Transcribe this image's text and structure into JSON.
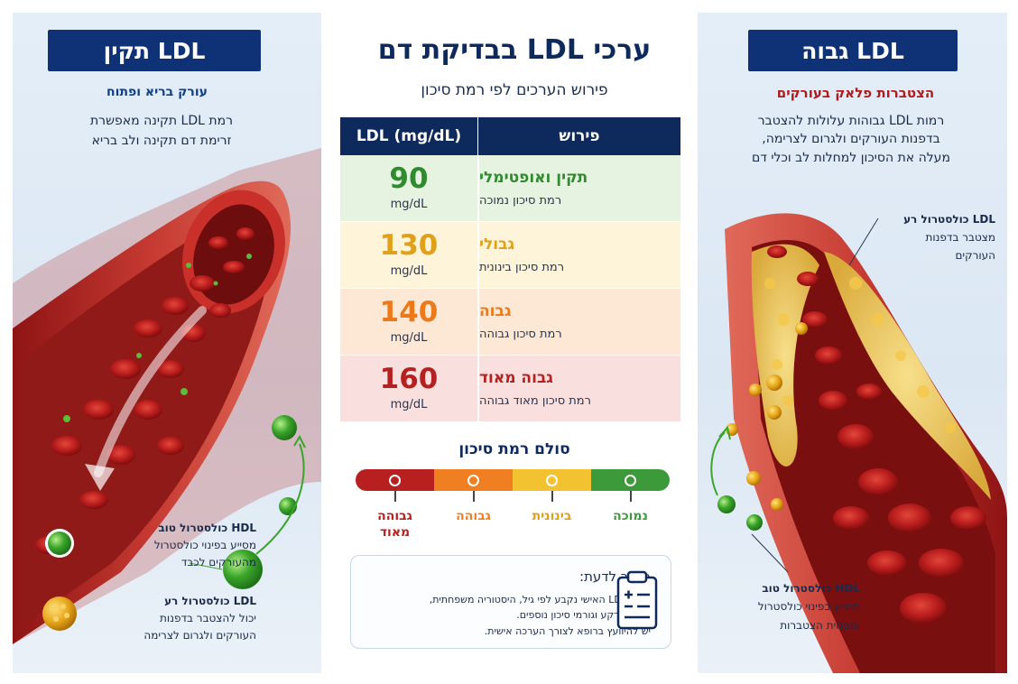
{
  "page": {
    "title": "ערכי LDL בבדיקת דם",
    "subtitle": "פירוש הערכים לפי רמת סיכון"
  },
  "left_panel": {
    "tag": "LDL תקין",
    "heading": "עורק בריא ופתוח",
    "description": [
      "רמת LDL תקינה מאפשרת",
      "זרימת דם תקינה ולב בריא"
    ],
    "hdl_title": "HDL כולסטרול טוב",
    "hdl_lines": [
      "מסייע בפינוי כולסטרול",
      "מהעורקים לכבד"
    ],
    "ldl_title": "LDL כולסטרול רע",
    "ldl_lines": [
      "יכול להצטבר בדפנות",
      "העורקים ולגרום לצרימה"
    ]
  },
  "right_panel": {
    "tag": "LDL גבוה",
    "heading": "הצטברות פלאק בעורקים",
    "description": [
      "רמות LDL גבוהות עלולות להצטבר",
      "בדפנות העורקים ולגרום לצרימה,",
      "מעלה את הסיכון למחלות לב וכלי דם"
    ],
    "ldl_title": "LDL כולסטרול רע",
    "ldl_lines": [
      "מצטבר בדפנות",
      "העורקים"
    ],
    "hdl_title": "HDL כולסטרול טוב",
    "hdl_lines": [
      "מסייע בפינוי כולסטרול",
      "ומפחית הצטברות"
    ]
  },
  "table": {
    "header_value": "LDL (mg/dL)",
    "header_interpretation": "פירוש",
    "rows": [
      {
        "value": "90",
        "unit": "mg/dL",
        "level": "תקין ואופטימלי",
        "risk": "רמת סיכון נמוכה",
        "color": "#2e8b2e",
        "bg": "#e6f3e0"
      },
      {
        "value": "130",
        "unit": "mg/dL",
        "level": "גבולי",
        "risk": "רמת סיכון בינונית",
        "color": "#e0a11a",
        "bg": "#fdf4d9"
      },
      {
        "value": "140",
        "unit": "mg/dL",
        "level": "גבוה",
        "risk": "רמת סיכון גבוהה",
        "color": "#ec7a1a",
        "bg": "#fde8d6"
      },
      {
        "value": "160",
        "unit": "mg/dL",
        "level": "גבוה מאוד",
        "risk": "רמת סיכון מאוד גבוהה",
        "color": "#b52020",
        "bg": "#f9e0df"
      }
    ]
  },
  "scale": {
    "title": "סולם רמת סיכון",
    "levels": [
      {
        "label": "נמוכה",
        "color": "#3c9a3a"
      },
      {
        "label": "בינונית",
        "color": "#f2c230"
      },
      {
        "label": "גבוהה",
        "color": "#f07f22"
      },
      {
        "label": "גבוהה מאוד",
        "color": "#b81f1f"
      }
    ]
  },
  "note": {
    "title": "חשוב לדעת:",
    "lines": [
      "יעד הLDL האישי נקבע לפי גיל, היסטוריה משפחתית,",
      "מחלות רקע וגורמי סיכון נוספים.",
      "יש להיוועץ ברופא לצורך הערכה אישית."
    ],
    "icon": "clipboard-icon"
  }
}
